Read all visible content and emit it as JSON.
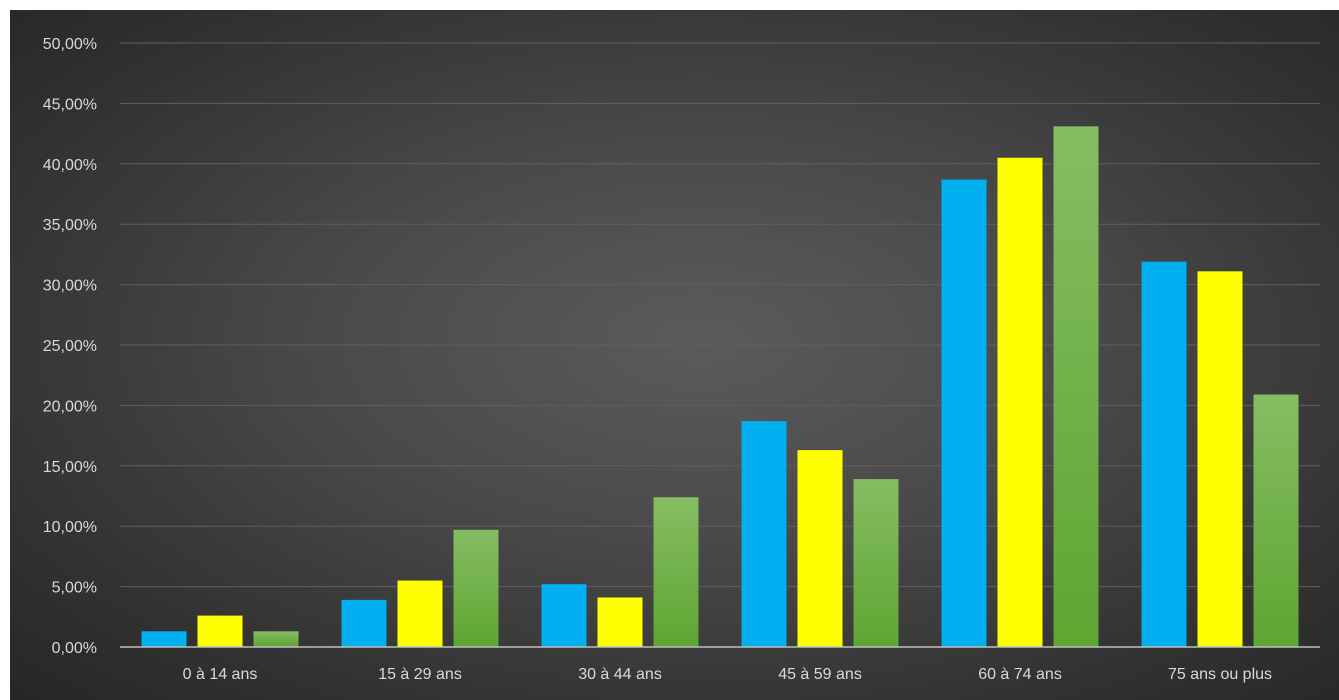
{
  "chart_data": {
    "type": "bar",
    "title": "",
    "xlabel": "",
    "ylabel": "",
    "categories": [
      "0 à 14 ans",
      "15 à 29 ans",
      "30 à 44 ans",
      "45 à 59 ans",
      "60 à 74 ans",
      "75 ans ou plus"
    ],
    "series": [
      {
        "values": [
          1.3,
          3.9,
          5.2,
          18.7,
          38.7,
          31.9
        ]
      },
      {
        "values": [
          2.6,
          5.5,
          4.1,
          16.3,
          40.5,
          31.1
        ]
      },
      {
        "values": [
          1.3,
          9.7,
          12.4,
          13.9,
          43.1,
          20.9
        ]
      }
    ],
    "ylim": [
      0,
      50
    ],
    "yticks": [
      "0,00%",
      "5,00%",
      "10,00%",
      "15,00%",
      "20,00%",
      "25,00%",
      "30,00%",
      "35,00%",
      "40,00%",
      "45,00%",
      "50,00%"
    ],
    "grid": true,
    "legend": "none",
    "colors": [
      "#00b0f0",
      "#ffff00",
      "#70ad47"
    ]
  }
}
